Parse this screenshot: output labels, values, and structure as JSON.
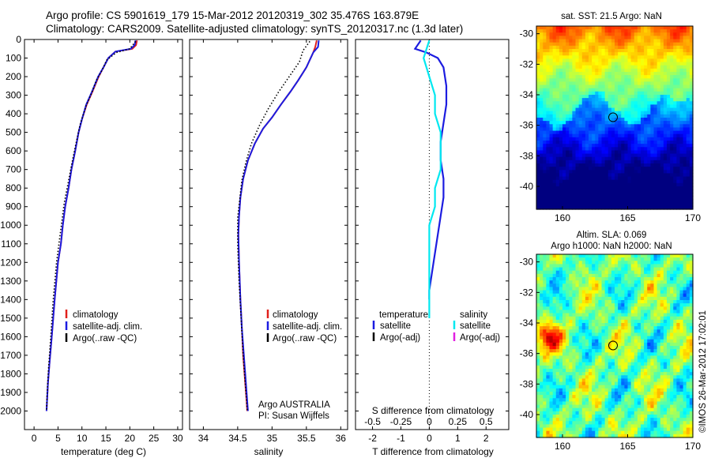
{
  "header": {
    "line1": "Argo profile: CS 5901619_179 15-Mar-2012 20120319_302 35.476S 163.879E",
    "line2": "Climatology: CARS2009. Satellite-adjusted climatology: synTS_20120317.nc (1.3d later)"
  },
  "colors": {
    "climatology": "#e0201c",
    "satellite": "#1c1ce0",
    "argo": "#000000",
    "satellite_salinity": "#00e8f0",
    "argo_salinity_adj": "#e020e0"
  },
  "chart_data": [
    {
      "type": "line",
      "name": "temperature-profile",
      "xlabel": "temperature (deg C)",
      "ylabel": "",
      "xlim": [
        -2,
        31
      ],
      "ylim": [
        2100,
        0
      ],
      "xticks": [
        "0",
        "5",
        "10",
        "15",
        "20",
        "25",
        "30"
      ],
      "yticks": [
        "0",
        "100",
        "200",
        "300",
        "400",
        "500",
        "600",
        "700",
        "800",
        "900",
        "1000",
        "1100",
        "1200",
        "1300",
        "1400",
        "1500",
        "1600",
        "1700",
        "1800",
        "1900",
        "2000"
      ],
      "legend": [
        "climatology",
        "satellite-adj. clim.",
        "Argo(..raw -QC)"
      ],
      "series": [
        {
          "name": "climatology",
          "x": [
            21.5,
            21.3,
            20.5,
            17,
            15.5,
            14.5,
            13.5,
            12.2,
            11,
            10,
            9.3,
            8.6,
            7.8,
            7.2,
            6.5,
            6,
            5.6,
            5,
            4.3,
            3.7,
            3.2,
            2.9,
            2.7,
            2.6
          ],
          "y": [
            5,
            30,
            50,
            65,
            100,
            150,
            200,
            280,
            350,
            430,
            500,
            600,
            700,
            800,
            900,
            1000,
            1100,
            1200,
            1400,
            1600,
            1750,
            1850,
            1950,
            2000
          ]
        },
        {
          "name": "satellite-adj. clim.",
          "x": [
            21.2,
            21.0,
            20.2,
            17,
            15.5,
            14.5,
            13.4,
            12.1,
            10.9,
            10,
            9.3,
            8.6,
            7.8,
            7.2,
            6.5,
            6,
            5.6,
            5,
            4.3,
            3.7,
            3.2,
            2.9,
            2.7,
            2.6
          ],
          "y": [
            5,
            30,
            50,
            65,
            100,
            150,
            200,
            280,
            350,
            430,
            500,
            600,
            700,
            800,
            900,
            1000,
            1100,
            1200,
            1400,
            1600,
            1750,
            1850,
            1950,
            2000
          ]
        },
        {
          "name": "Argo(..raw -QC)",
          "x": [
            21.2,
            20,
            17.2,
            15.2,
            14.3,
            13,
            12,
            10.8,
            9.6,
            8.6,
            7.8,
            7.0,
            6.3,
            5.8,
            5.3,
            4.7,
            4.0,
            3.5,
            3.0,
            2.7,
            2.6
          ],
          "y": [
            10,
            50,
            70,
            110,
            160,
            220,
            290,
            360,
            460,
            580,
            680,
            790,
            880,
            980,
            1080,
            1200,
            1400,
            1600,
            1780,
            1920,
            2000
          ]
        }
      ]
    },
    {
      "type": "line",
      "name": "salinity-profile",
      "xlabel": "salinity",
      "xlim": [
        33.8,
        36.1
      ],
      "ylim": [
        2100,
        0
      ],
      "xticks": [
        "34",
        "34.5",
        "35",
        "35.5",
        "36"
      ],
      "legend": [
        "climatology",
        "satellite-adj. clim.",
        "Argo(..raw -QC)"
      ],
      "annotation": [
        "Argo AUSTRALIA",
        "PI: Susan Wijffels"
      ],
      "series": [
        {
          "name": "climatology",
          "x": [
            35.65,
            35.63,
            35.6,
            35.5,
            35.38,
            35.27,
            35.13,
            35.0,
            34.87,
            34.75,
            34.65,
            34.58,
            34.54,
            34.52,
            34.51,
            34.52,
            34.54,
            34.56,
            34.58,
            34.61,
            34.63,
            34.64
          ],
          "y": [
            5,
            40,
            70,
            150,
            220,
            280,
            350,
            420,
            480,
            560,
            650,
            750,
            850,
            950,
            1050,
            1200,
            1400,
            1550,
            1700,
            1850,
            1950,
            2000
          ]
        },
        {
          "name": "satellite-adj. clim.",
          "x": [
            35.68,
            35.67,
            35.6,
            35.5,
            35.38,
            35.27,
            35.13,
            35.0,
            34.87,
            34.75,
            34.65,
            34.58,
            34.54,
            34.52,
            34.51,
            34.52,
            34.54,
            34.56,
            34.59,
            34.62,
            34.64,
            34.65
          ],
          "y": [
            5,
            40,
            70,
            150,
            220,
            280,
            350,
            420,
            480,
            560,
            650,
            750,
            850,
            950,
            1050,
            1200,
            1400,
            1550,
            1700,
            1850,
            1950,
            2000
          ]
        },
        {
          "name": "Argo(..raw -QC)",
          "x": [
            35.55,
            35.45,
            35.4,
            35.25,
            35.1,
            34.95,
            34.82,
            34.7,
            34.62,
            34.56,
            34.53,
            34.5,
            34.5,
            34.52,
            34.55,
            34.58,
            34.62,
            34.64
          ],
          "y": [
            10,
            60,
            120,
            200,
            280,
            370,
            460,
            560,
            660,
            760,
            860,
            960,
            1100,
            1300,
            1500,
            1700,
            1900,
            2000
          ]
        }
      ]
    },
    {
      "type": "line",
      "name": "difference-profile",
      "xlabel": "T difference from climatology",
      "xlabel2": "S difference from climatology",
      "xlim": [
        -2.6,
        2.8
      ],
      "ylim": [
        2100,
        0
      ],
      "xticks": [
        "-2",
        "-1",
        "0",
        "1",
        "2"
      ],
      "xticks_s": [
        "-0.5",
        "-0.25",
        "0",
        "0.25",
        "0.5"
      ],
      "legend_t_title": "temperature",
      "legend_s_title": "salinity",
      "legend": [
        "satellite",
        "Argo(-adj)",
        "satellite",
        "Argo(-adj)"
      ],
      "series": [
        {
          "name": "T satellite",
          "x": [
            -0.3,
            -0.5,
            -0.1,
            0.3,
            0.5,
            0.6,
            0.6,
            0.5,
            0.4,
            0.4,
            0.5,
            0.5,
            0.4,
            0.3,
            0.2,
            0.1,
            0.05,
            0.0,
            0.0
          ],
          "y": [
            5,
            50,
            70,
            100,
            150,
            250,
            350,
            450,
            550,
            650,
            750,
            850,
            950,
            1050,
            1150,
            1250,
            1300,
            1350,
            1400
          ]
        },
        {
          "name": "S satellite",
          "x": [
            0.0,
            -0.05,
            0.0,
            0.05,
            0.05,
            0.1,
            0.1,
            0.1,
            0.05,
            0.05,
            0.0,
            0.0,
            0.0,
            0.0
          ],
          "y": [
            5,
            100,
            200,
            300,
            400,
            500,
            600,
            700,
            800,
            900,
            1000,
            1200,
            1400,
            1500
          ]
        }
      ]
    },
    {
      "type": "heatmap",
      "name": "sst-map",
      "title": "sat. SST: 21.5 Argo: NaN",
      "xlim": [
        158,
        170
      ],
      "ylim": [
        -41.5,
        -29.5
      ],
      "xticks": [
        "160",
        "165",
        "170"
      ],
      "yticks": [
        "-30",
        "-32",
        "-34",
        "-36",
        "-38",
        "-40"
      ],
      "marker": {
        "lon": 163.879,
        "lat": -35.476
      }
    },
    {
      "type": "heatmap",
      "name": "sla-map",
      "title1": "Altim. SLA: 0.069",
      "title2": "Argo h1000: NaN h2000: NaN",
      "xlim": [
        158,
        170
      ],
      "ylim": [
        -41.5,
        -29.5
      ],
      "xticks": [
        "160",
        "165",
        "170"
      ],
      "yticks": [
        "-30",
        "-32",
        "-34",
        "-36",
        "-38",
        "-40"
      ],
      "marker": {
        "lon": 163.879,
        "lat": -35.476
      }
    }
  ],
  "credit": "©IMOS 26-Mar-2012 17:02:01"
}
